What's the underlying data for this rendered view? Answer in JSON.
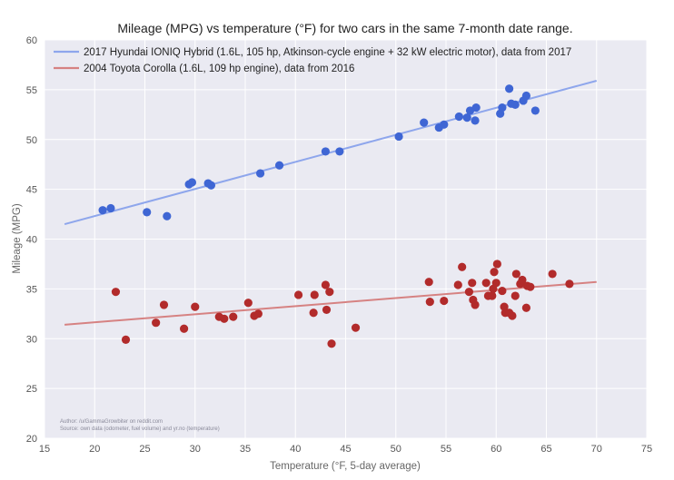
{
  "chart_data": {
    "type": "scatter",
    "title": "Mileage (MPG) vs temperature (°F) for two cars in the same 7-month date range.",
    "xlabel": "Temperature (°F, 5-day average)",
    "ylabel": "Mileage (MPG)",
    "xlim": [
      15,
      75
    ],
    "ylim": [
      20,
      60
    ],
    "xticks": [
      15,
      20,
      25,
      30,
      35,
      40,
      45,
      50,
      55,
      60,
      65,
      70,
      75
    ],
    "yticks": [
      20,
      25,
      30,
      35,
      40,
      45,
      50,
      55,
      60
    ],
    "grid": true,
    "legend_position": "top-left",
    "series": [
      {
        "name": "2017 Hyundai IONIQ Hybrid (1.6L, 105 hp, Atkinson-cycle engine + 32 kW electric motor), data from 2017",
        "point_color": "#3f66d4",
        "line_color": "#8ea6ec",
        "trendline": {
          "x": [
            17,
            70
          ],
          "y": [
            41.5,
            55.9
          ]
        },
        "points": [
          [
            20.8,
            42.9
          ],
          [
            21.6,
            43.1
          ],
          [
            25.2,
            42.7
          ],
          [
            27.2,
            42.3
          ],
          [
            29.4,
            45.5
          ],
          [
            29.7,
            45.7
          ],
          [
            31.3,
            45.6
          ],
          [
            31.6,
            45.4
          ],
          [
            36.5,
            46.6
          ],
          [
            38.4,
            47.4
          ],
          [
            43.0,
            48.8
          ],
          [
            44.4,
            48.8
          ],
          [
            50.3,
            50.3
          ],
          [
            52.8,
            51.7
          ],
          [
            54.3,
            51.2
          ],
          [
            54.8,
            51.5
          ],
          [
            56.3,
            52.3
          ],
          [
            57.1,
            52.2
          ],
          [
            57.4,
            52.9
          ],
          [
            58.0,
            53.2
          ],
          [
            57.9,
            51.9
          ],
          [
            60.4,
            52.6
          ],
          [
            60.6,
            53.2
          ],
          [
            61.3,
            55.1
          ],
          [
            61.5,
            53.6
          ],
          [
            61.9,
            53.5
          ],
          [
            62.7,
            53.9
          ],
          [
            63.0,
            54.4
          ],
          [
            63.9,
            52.9
          ]
        ]
      },
      {
        "name": "2004 Toyota Corolla (1.6L, 109 hp engine), data from 2016",
        "point_color": "#b22b2b",
        "line_color": "#d68282",
        "trendline": {
          "x": [
            17,
            70
          ],
          "y": [
            31.4,
            35.7
          ]
        },
        "points": [
          [
            22.1,
            34.7
          ],
          [
            23.1,
            29.9
          ],
          [
            26.1,
            31.6
          ],
          [
            26.9,
            33.4
          ],
          [
            28.9,
            31.0
          ],
          [
            30.0,
            33.2
          ],
          [
            32.4,
            32.2
          ],
          [
            32.9,
            32.0
          ],
          [
            33.8,
            32.2
          ],
          [
            35.3,
            33.6
          ],
          [
            35.9,
            32.3
          ],
          [
            36.3,
            32.5
          ],
          [
            40.3,
            34.4
          ],
          [
            41.8,
            32.6
          ],
          [
            41.9,
            34.4
          ],
          [
            43.0,
            35.4
          ],
          [
            43.1,
            32.9
          ],
          [
            43.4,
            34.7
          ],
          [
            43.6,
            29.5
          ],
          [
            46.0,
            31.1
          ],
          [
            53.3,
            35.7
          ],
          [
            53.4,
            33.7
          ],
          [
            54.8,
            33.8
          ],
          [
            56.2,
            35.4
          ],
          [
            56.6,
            37.2
          ],
          [
            57.3,
            34.7
          ],
          [
            57.6,
            35.6
          ],
          [
            57.7,
            33.9
          ],
          [
            57.9,
            33.4
          ],
          [
            59.0,
            35.6
          ],
          [
            59.2,
            34.3
          ],
          [
            59.6,
            34.3
          ],
          [
            59.7,
            35.0
          ],
          [
            59.8,
            36.7
          ],
          [
            60.0,
            35.6
          ],
          [
            60.1,
            37.5
          ],
          [
            60.6,
            34.8
          ],
          [
            60.8,
            33.2
          ],
          [
            60.9,
            32.6
          ],
          [
            61.3,
            32.6
          ],
          [
            61.6,
            32.3
          ],
          [
            61.9,
            34.3
          ],
          [
            62.0,
            36.5
          ],
          [
            62.4,
            35.5
          ],
          [
            62.6,
            35.9
          ],
          [
            63.0,
            33.1
          ],
          [
            63.1,
            35.3
          ],
          [
            63.4,
            35.2
          ],
          [
            65.6,
            36.5
          ],
          [
            67.3,
            35.5
          ]
        ]
      }
    ],
    "annotation": {
      "line1": "Author: /u/GammaGrowbiter on reddit.com",
      "line2": "Source: own data (odometer, fuel volume) and yr.no (temperature)"
    }
  }
}
